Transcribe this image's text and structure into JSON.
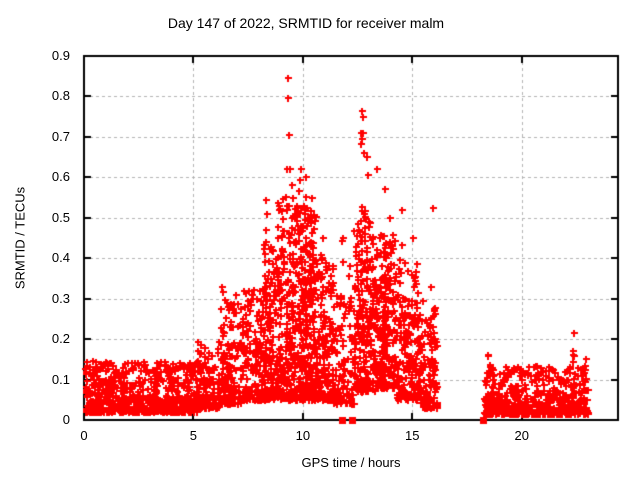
{
  "chart_data": {
    "type": "scatter",
    "title": "Day 147 of 2022, SRMTID for receiver malm",
    "xlabel": "GPS time / hours",
    "ylabel": "SRMTID / TECUs",
    "xlim": [
      0,
      24.4
    ],
    "ylim": [
      0,
      0.9
    ],
    "xticks": {
      "values": [
        0,
        5,
        10,
        15,
        20
      ],
      "labels": [
        "0",
        "5",
        "10",
        "15",
        "20"
      ]
    },
    "yticks": {
      "values": [
        0,
        0.1,
        0.2,
        0.3,
        0.4,
        0.5,
        0.6,
        0.7,
        0.8,
        0.9
      ],
      "labels": [
        "0",
        "0.1",
        "0.2",
        "0.3",
        "0.4",
        "0.5",
        "0.6",
        "0.7",
        "0.8",
        "0.9"
      ]
    },
    "grid": {
      "show": true,
      "color": "#b3b3b3",
      "dash": [
        3,
        3
      ]
    },
    "axis_color": "#000000",
    "background": "#ffffff",
    "series": [
      {
        "name": "SRMTID",
        "marker": "plus",
        "color": "#ff0000",
        "size": 7
      }
    ],
    "zero_markers": {
      "shape": "square",
      "color": "#ff0000",
      "size": 7,
      "hours": [
        11.77,
        12.25,
        18.25
      ]
    },
    "point_cloud": {
      "seed": 1147,
      "segments": [
        {
          "x0": 0.05,
          "x1": 5.2,
          "n": 600,
          "yMin": 0.02,
          "yMax": 0.145,
          "skew": 2.2
        },
        {
          "x0": 5.2,
          "x1": 6.2,
          "n": 115,
          "yMin": 0.03,
          "yMax": 0.2,
          "skew": 2.0
        },
        {
          "x0": 6.2,
          "x1": 7.2,
          "n": 140,
          "yMin": 0.04,
          "yMax": 0.3,
          "skew": 2.1
        },
        {
          "x0": 7.2,
          "x1": 8.2,
          "n": 150,
          "yMin": 0.05,
          "yMax": 0.33,
          "skew": 2.0
        },
        {
          "x0": 8.2,
          "x1": 8.8,
          "n": 130,
          "yMin": 0.05,
          "yMax": 0.44,
          "skew": 1.9
        },
        {
          "x0": 8.8,
          "x1": 9.7,
          "n": 220,
          "yMin": 0.05,
          "yMax": 0.56,
          "skew": 1.7
        },
        {
          "x0": 9.7,
          "x1": 10.6,
          "n": 260,
          "yMin": 0.05,
          "yMax": 0.55,
          "skew": 1.6
        },
        {
          "x0": 10.6,
          "x1": 11.4,
          "n": 150,
          "yMin": 0.05,
          "yMax": 0.42,
          "skew": 1.9
        },
        {
          "x0": 11.4,
          "x1": 12.35,
          "n": 100,
          "yMin": 0.04,
          "yMax": 0.32,
          "skew": 1.9
        },
        {
          "x0": 12.35,
          "x1": 13.3,
          "n": 210,
          "yMin": 0.07,
          "yMax": 0.52,
          "skew": 1.6
        },
        {
          "x0": 13.3,
          "x1": 14.3,
          "n": 215,
          "yMin": 0.08,
          "yMax": 0.46,
          "skew": 1.5
        },
        {
          "x0": 14.3,
          "x1": 15.3,
          "n": 165,
          "yMin": 0.05,
          "yMax": 0.4,
          "skew": 1.7
        },
        {
          "x0": 15.3,
          "x1": 16.15,
          "n": 120,
          "yMin": 0.03,
          "yMax": 0.3,
          "skew": 1.9
        },
        {
          "x0": 18.25,
          "x1": 23.05,
          "n": 520,
          "yMin": 0.015,
          "yMax": 0.135,
          "skew": 2.2
        }
      ],
      "spikes": [
        {
          "x": 6.35,
          "top": 0.33,
          "n": 4
        },
        {
          "x": 6.9,
          "top": 0.31,
          "n": 4
        },
        {
          "x": 7.45,
          "top": 0.32,
          "n": 4
        },
        {
          "x": 8.35,
          "top": 0.545,
          "n": 9
        },
        {
          "x": 9.33,
          "top": 0.62,
          "n": 6
        },
        {
          "x": 9.5,
          "top": 0.58,
          "n": 5
        },
        {
          "x": 9.9,
          "top": 0.62,
          "n": 7
        },
        {
          "x": 10.15,
          "top": 0.6,
          "n": 8
        },
        {
          "x": 10.4,
          "top": 0.55,
          "n": 6
        },
        {
          "x": 10.9,
          "top": 0.45,
          "n": 5
        },
        {
          "x": 11.8,
          "top": 0.45,
          "n": 4
        },
        {
          "x": 12.1,
          "top": 0.38,
          "n": 3
        },
        {
          "x": 12.72,
          "top": 0.71,
          "n": 8
        },
        {
          "x": 13.0,
          "top": 0.65,
          "n": 5
        },
        {
          "x": 13.42,
          "top": 0.62,
          "n": 4
        },
        {
          "x": 13.7,
          "top": 0.57,
          "n": 5
        },
        {
          "x": 14.0,
          "top": 0.5,
          "n": 4
        },
        {
          "x": 14.5,
          "top": 0.52,
          "n": 4
        },
        {
          "x": 15.0,
          "top": 0.45,
          "n": 3
        },
        {
          "x": 15.8,
          "top": 0.33,
          "n": 3
        },
        {
          "x": 16.0,
          "top": 0.525,
          "n": 4
        },
        {
          "x": 18.5,
          "top": 0.16,
          "n": 6
        },
        {
          "x": 22.4,
          "top": 0.17,
          "n": 6
        },
        {
          "x": 22.95,
          "top": 0.15,
          "n": 6
        }
      ],
      "outliers": [
        [
          0.4,
          0.145
        ],
        [
          9.33,
          0.845
        ],
        [
          9.34,
          0.795
        ],
        [
          9.36,
          0.705
        ],
        [
          9.4,
          0.62
        ],
        [
          12.72,
          0.765
        ],
        [
          12.73,
          0.748
        ],
        [
          12.76,
          0.71
        ],
        [
          12.79,
          0.66
        ],
        [
          22.4,
          0.215
        ]
      ]
    }
  }
}
